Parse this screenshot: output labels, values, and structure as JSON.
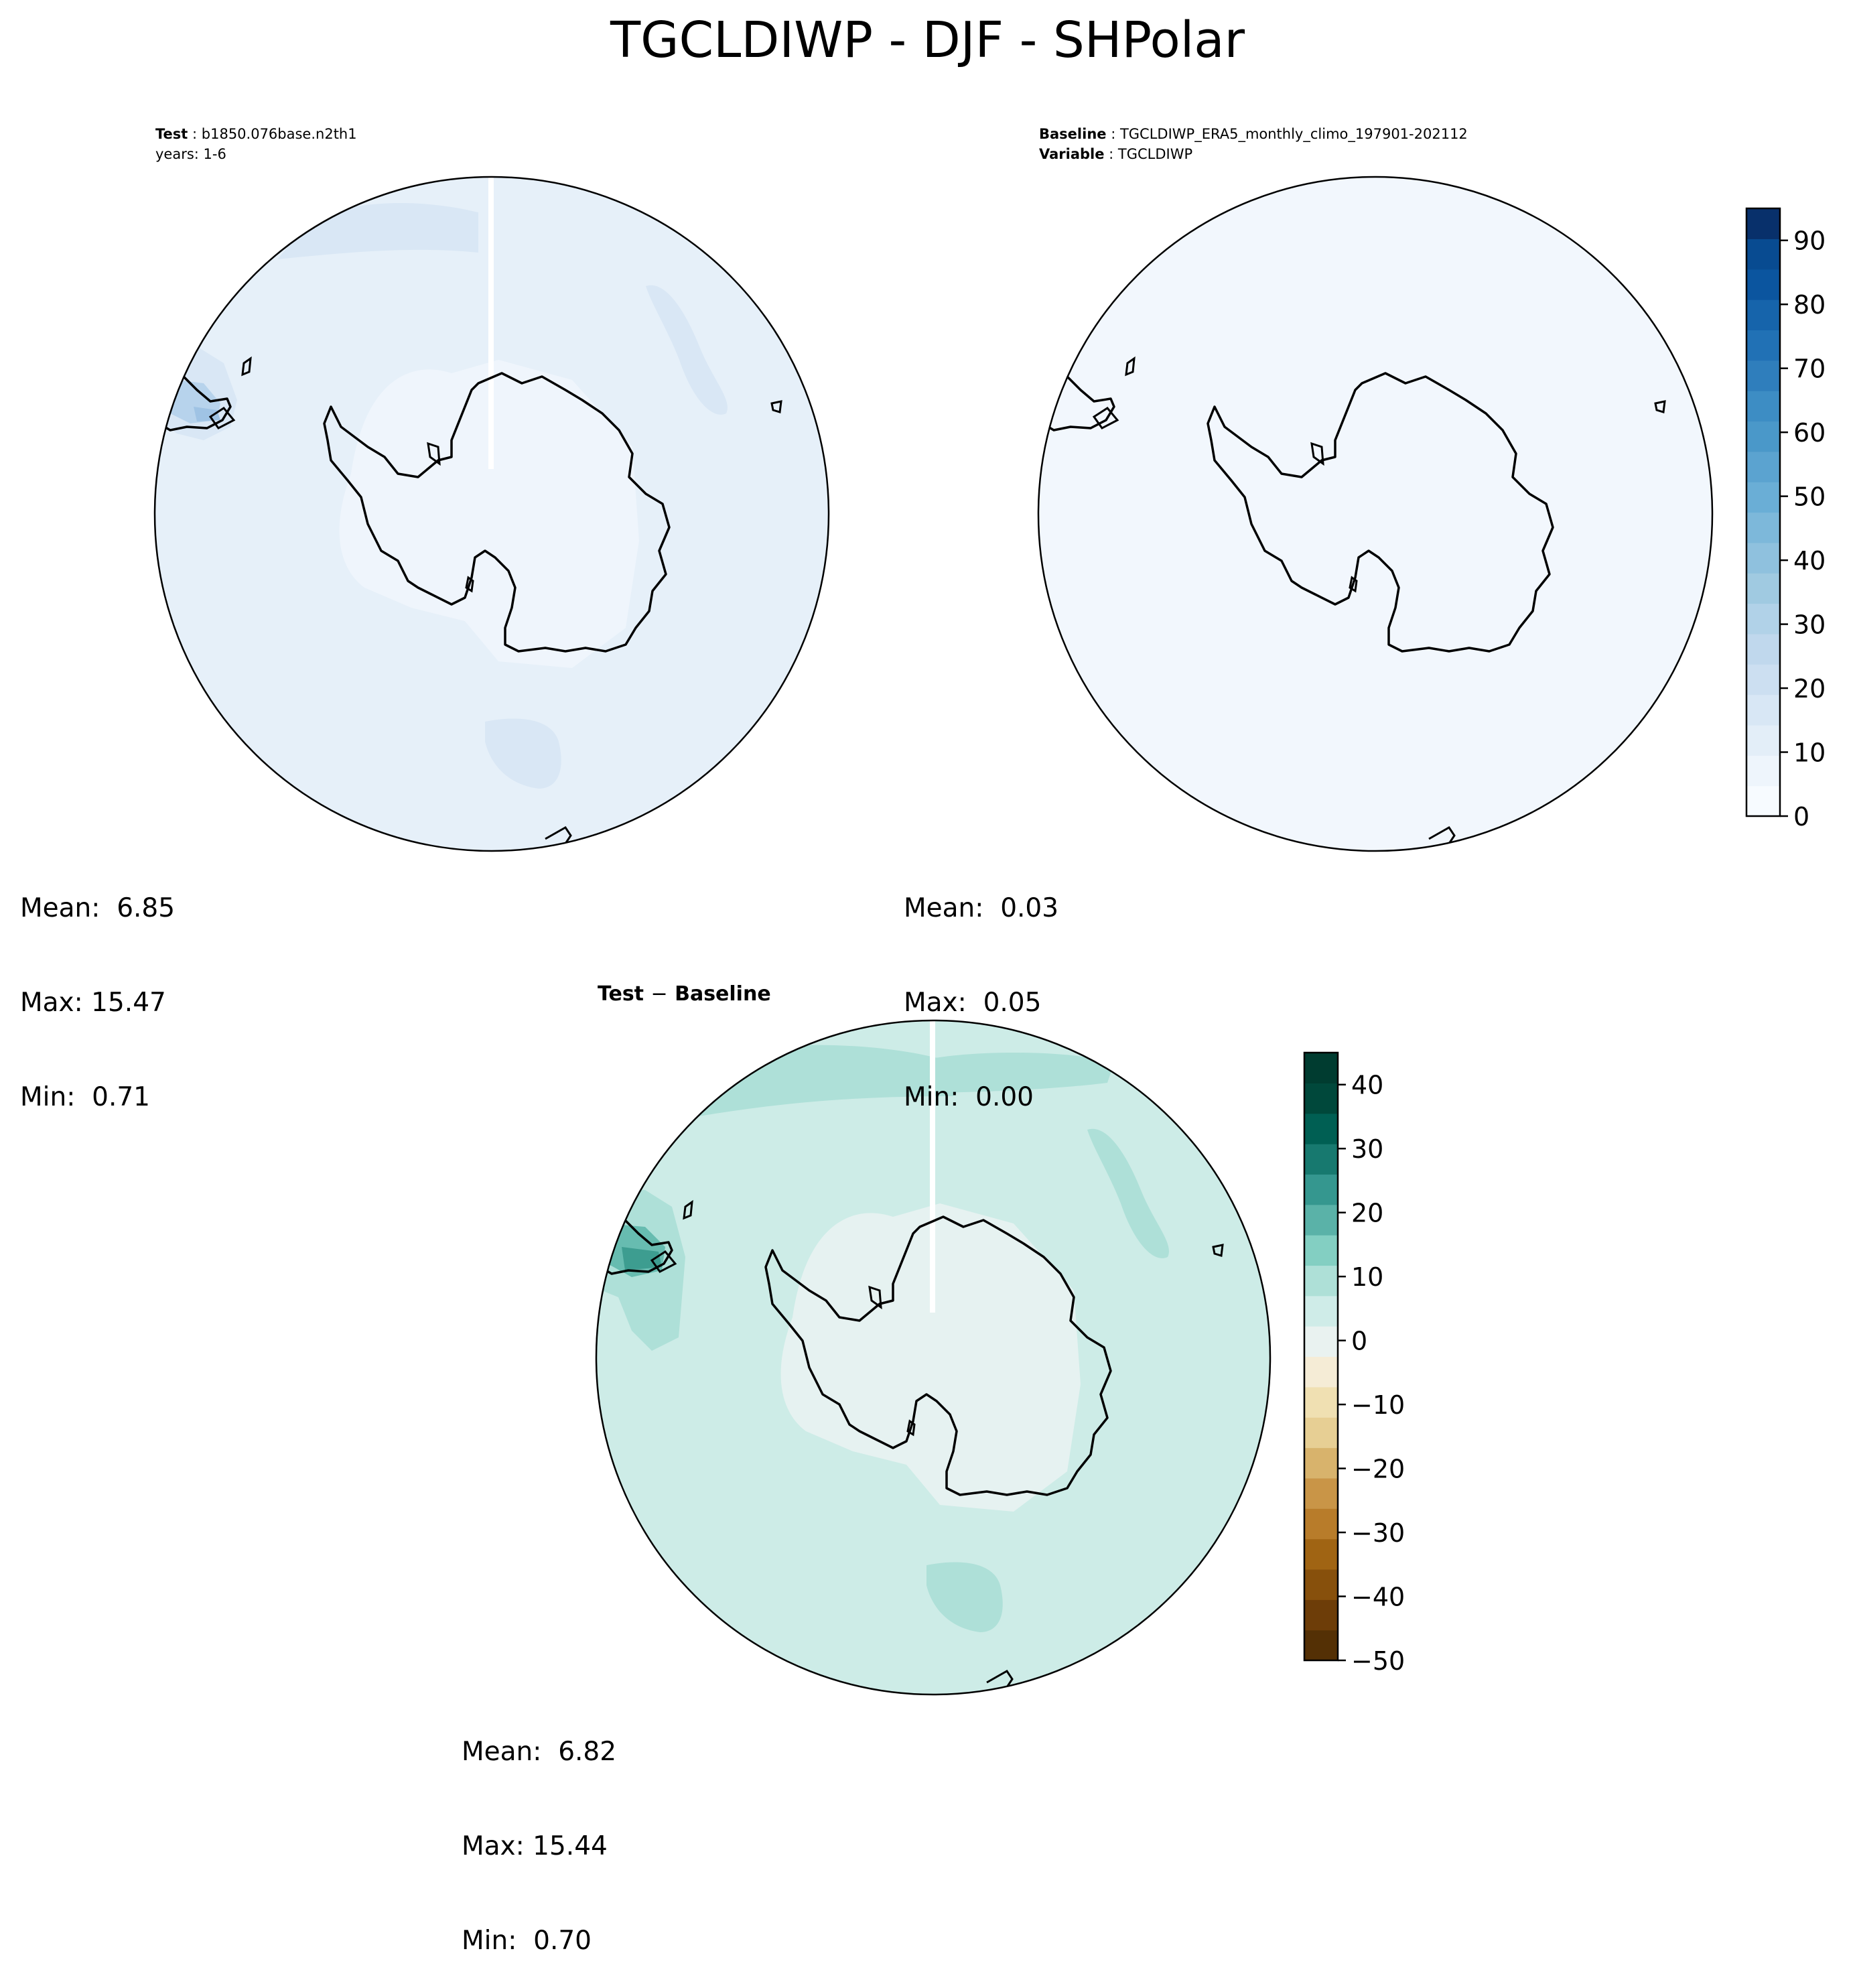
{
  "figure": {
    "title": "TGCLDIWP - DJF - SHPolar",
    "colors": {
      "coast": "#000000",
      "background": "#ffffff"
    }
  },
  "panels": {
    "test": {
      "label": "Test",
      "case": "b1850.076base.n2th1",
      "years": "years: 1-6",
      "stats": {
        "mean": "6.85",
        "max": "15.47",
        "min": "0.71"
      },
      "fill_colors": {
        "ocean": "#e6f0f9",
        "ice": "#eff5fc",
        "clouds": "#d9e7f5",
        "tip": "#b7d3ec",
        "tip_dark": "#9fc3e4"
      }
    },
    "baseline": {
      "label": "Baseline",
      "case": "TGCLDIWP_ERA5_monthly_climo_197901-202112",
      "variable_label": "Variable",
      "variable": "TGCLDIWP",
      "stats": {
        "mean": "0.03",
        "max": "0.05",
        "min": "0.00"
      },
      "fill_colors": {
        "ocean": "#f2f7fd"
      }
    },
    "diff": {
      "title_left": "Test",
      "title_op": "−",
      "title_right": "Baseline",
      "stats": {
        "mean": "6.82",
        "max": "15.44",
        "min": "0.70"
      },
      "fill_colors": {
        "ocean": "#cdece7",
        "ice": "#e6f2f1",
        "clouds": "#aee0d8",
        "tip": "#67bcb0",
        "tip_dark": "#3d9d90"
      }
    }
  },
  "chart_data": [
    {
      "type": "heatmap",
      "title": "Test: b1850.076base.n2th1",
      "projection": "south-polar-stereographic",
      "colormap": "Blues",
      "colorbar": "shared-with-baseline",
      "stats": {
        "mean": 6.85,
        "max": 15.47,
        "min": 0.71
      }
    },
    {
      "type": "heatmap",
      "title": "Baseline: TGCLDIWP_ERA5_monthly_climo_197901-202112",
      "projection": "south-polar-stereographic",
      "colormap": "Blues",
      "stats": {
        "mean": 0.03,
        "max": 0.05,
        "min": 0.0
      },
      "colorbar": {
        "ticks": [
          "0",
          "10",
          "20",
          "30",
          "40",
          "50",
          "60",
          "70",
          "80",
          "90"
        ],
        "range": [
          0,
          95
        ],
        "step": 5,
        "colors": [
          "#f7fbff",
          "#eef5fc",
          "#e3eef8",
          "#d8e7f5",
          "#ccdff1",
          "#c0d8ed",
          "#b1d2e8",
          "#a0cae1",
          "#8fc1de",
          "#7db8da",
          "#6aaed6",
          "#5ba3d0",
          "#4a98c9",
          "#3d8dc4",
          "#2f7ebc",
          "#2171b5",
          "#1664ab",
          "#0b559f",
          "#084b91",
          "#08306b"
        ]
      }
    },
    {
      "type": "heatmap",
      "title": "Test − Baseline",
      "projection": "south-polar-stereographic",
      "colormap": "BrBG",
      "stats": {
        "mean": 6.82,
        "max": 15.44,
        "min": 0.7
      },
      "colorbar": {
        "ticks": [
          "40",
          "30",
          "20",
          "10",
          "0",
          "−10",
          "−20",
          "−30",
          "−40",
          "−50"
        ],
        "tick_values": [
          40,
          30,
          20,
          10,
          0,
          -10,
          -20,
          -30,
          -40,
          -50
        ],
        "range": [
          -50,
          45
        ],
        "step": 5,
        "colors": [
          "#543005",
          "#6d3d08",
          "#87500c",
          "#a06413",
          "#b87c2a",
          "#c99547",
          "#d8b36c",
          "#e7cf94",
          "#f0e0b2",
          "#f5ecd6",
          "#e9f2f0",
          "#cfece8",
          "#aee0d7",
          "#83cfc2",
          "#5ab2a8",
          "#35978f",
          "#17796f",
          "#005f53",
          "#00483b",
          "#003c30"
        ]
      }
    }
  ]
}
